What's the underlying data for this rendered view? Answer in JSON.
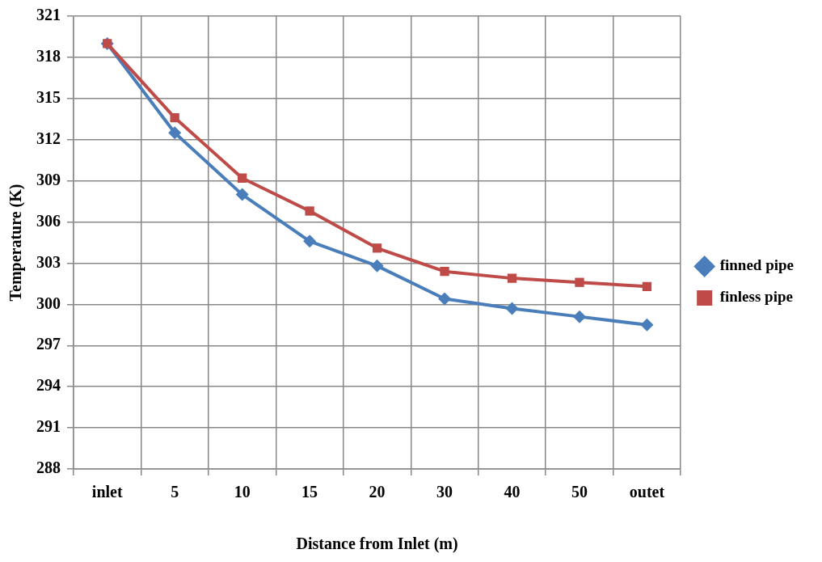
{
  "chart_data": {
    "type": "line",
    "xlabel": "Distance from Inlet (m)",
    "ylabel": "Temperature (K)",
    "categories": [
      "inlet",
      "5",
      "10",
      "15",
      "20",
      "30",
      "40",
      "50",
      "outet"
    ],
    "series": [
      {
        "name": "finned pipe",
        "color": "#4a7ebb",
        "marker": "diamond",
        "values": [
          319,
          312.5,
          308.0,
          304.6,
          302.8,
          300.4,
          299.7,
          299.1,
          298.5
        ]
      },
      {
        "name": "finless pipe",
        "color": "#be4b48",
        "marker": "square",
        "values": [
          319,
          313.6,
          309.2,
          306.8,
          304.1,
          302.4,
          301.9,
          301.6,
          301.3
        ]
      }
    ],
    "ylim": [
      288,
      321
    ],
    "yticks": [
      288,
      291,
      294,
      297,
      300,
      303,
      306,
      309,
      312,
      315,
      318,
      321
    ],
    "grid": true,
    "legend": "right",
    "line_style": "solid"
  }
}
